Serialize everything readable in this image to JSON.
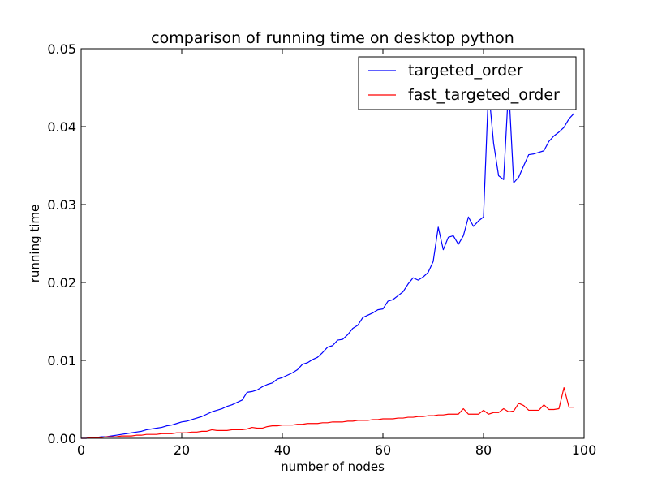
{
  "chart_data": {
    "type": "line",
    "title": "comparison of running time on desktop python",
    "xlabel": "number of nodes",
    "ylabel": "running time",
    "xlim": [
      0,
      100
    ],
    "ylim": [
      0,
      0.05
    ],
    "xticks": [
      0,
      20,
      40,
      60,
      80,
      100
    ],
    "xtick_labels": [
      "0",
      "20",
      "40",
      "60",
      "80",
      "100"
    ],
    "yticks": [
      0,
      0.01,
      0.02,
      0.03,
      0.04,
      0.05
    ],
    "ytick_labels": [
      "0.00",
      "0.01",
      "0.02",
      "0.03",
      "0.04",
      "0.05"
    ],
    "grid": false,
    "legend_position": "top-right",
    "x": [
      0,
      1,
      2,
      3,
      4,
      5,
      6,
      7,
      8,
      9,
      10,
      11,
      12,
      13,
      14,
      15,
      16,
      17,
      18,
      19,
      20,
      21,
      22,
      23,
      24,
      25,
      26,
      27,
      28,
      29,
      30,
      31,
      32,
      33,
      34,
      35,
      36,
      37,
      38,
      39,
      40,
      41,
      42,
      43,
      44,
      45,
      46,
      47,
      48,
      49,
      50,
      51,
      52,
      53,
      54,
      55,
      56,
      57,
      58,
      59,
      60,
      61,
      62,
      63,
      64,
      65,
      66,
      67,
      68,
      69,
      70,
      71,
      72,
      73,
      74,
      75,
      76,
      77,
      78,
      79,
      80,
      81,
      82,
      83,
      84,
      85,
      86,
      87,
      88,
      89,
      90,
      91,
      92,
      93,
      94,
      95,
      96,
      97,
      98
    ],
    "series": [
      {
        "name": "targeted_order",
        "color": "#0000ff",
        "values": [
          0.0,
          0.0,
          0.0001,
          0.0001,
          0.0002,
          0.0002,
          0.0003,
          0.0004,
          0.0005,
          0.0006,
          0.0007,
          0.0008,
          0.0009,
          0.0011,
          0.0012,
          0.0013,
          0.0014,
          0.0016,
          0.0017,
          0.0019,
          0.0021,
          0.0022,
          0.0024,
          0.0026,
          0.0028,
          0.0031,
          0.0034,
          0.0036,
          0.0038,
          0.0041,
          0.0043,
          0.0046,
          0.0049,
          0.0059,
          0.006,
          0.0062,
          0.0066,
          0.0069,
          0.0071,
          0.0076,
          0.0078,
          0.0081,
          0.0084,
          0.0088,
          0.0095,
          0.0097,
          0.0101,
          0.0104,
          0.011,
          0.0117,
          0.0119,
          0.0126,
          0.0127,
          0.0133,
          0.0141,
          0.0145,
          0.0155,
          0.0158,
          0.0161,
          0.0165,
          0.0166,
          0.0176,
          0.0178,
          0.0183,
          0.0188,
          0.0198,
          0.0206,
          0.0203,
          0.0207,
          0.0213,
          0.0227,
          0.0271,
          0.0242,
          0.0258,
          0.026,
          0.0249,
          0.026,
          0.0284,
          0.0272,
          0.0279,
          0.0284,
          0.0449,
          0.0379,
          0.0337,
          0.0332,
          0.0452,
          0.0328,
          0.0335,
          0.035,
          0.0364,
          0.0365,
          0.0367,
          0.0369,
          0.0381,
          0.0388,
          0.0393,
          0.0399,
          0.041,
          0.0417
        ]
      },
      {
        "name": "fast_targeted_order",
        "color": "#ff0000",
        "values": [
          0.0,
          0.0,
          0.0001,
          0.0001,
          0.0001,
          0.0002,
          0.0002,
          0.0002,
          0.0003,
          0.0003,
          0.0003,
          0.0004,
          0.0004,
          0.0005,
          0.0005,
          0.0005,
          0.0006,
          0.0006,
          0.0006,
          0.0007,
          0.0007,
          0.0007,
          0.0008,
          0.0008,
          0.0009,
          0.0009,
          0.0011,
          0.001,
          0.001,
          0.001,
          0.0011,
          0.0011,
          0.0011,
          0.0012,
          0.0014,
          0.0013,
          0.0013,
          0.0015,
          0.0016,
          0.0016,
          0.0017,
          0.0017,
          0.0017,
          0.0018,
          0.0018,
          0.0019,
          0.0019,
          0.0019,
          0.002,
          0.002,
          0.0021,
          0.0021,
          0.0021,
          0.0022,
          0.0022,
          0.0023,
          0.0023,
          0.0023,
          0.0024,
          0.0024,
          0.0025,
          0.0025,
          0.0025,
          0.0026,
          0.0026,
          0.0027,
          0.0027,
          0.0028,
          0.0028,
          0.0029,
          0.0029,
          0.003,
          0.003,
          0.0031,
          0.0031,
          0.0031,
          0.0038,
          0.0031,
          0.0031,
          0.0031,
          0.0036,
          0.0031,
          0.0033,
          0.0033,
          0.0038,
          0.0034,
          0.0035,
          0.0045,
          0.0042,
          0.0036,
          0.0036,
          0.0036,
          0.0043,
          0.0037,
          0.0037,
          0.0038,
          0.0065,
          0.004,
          0.004
        ]
      }
    ]
  }
}
